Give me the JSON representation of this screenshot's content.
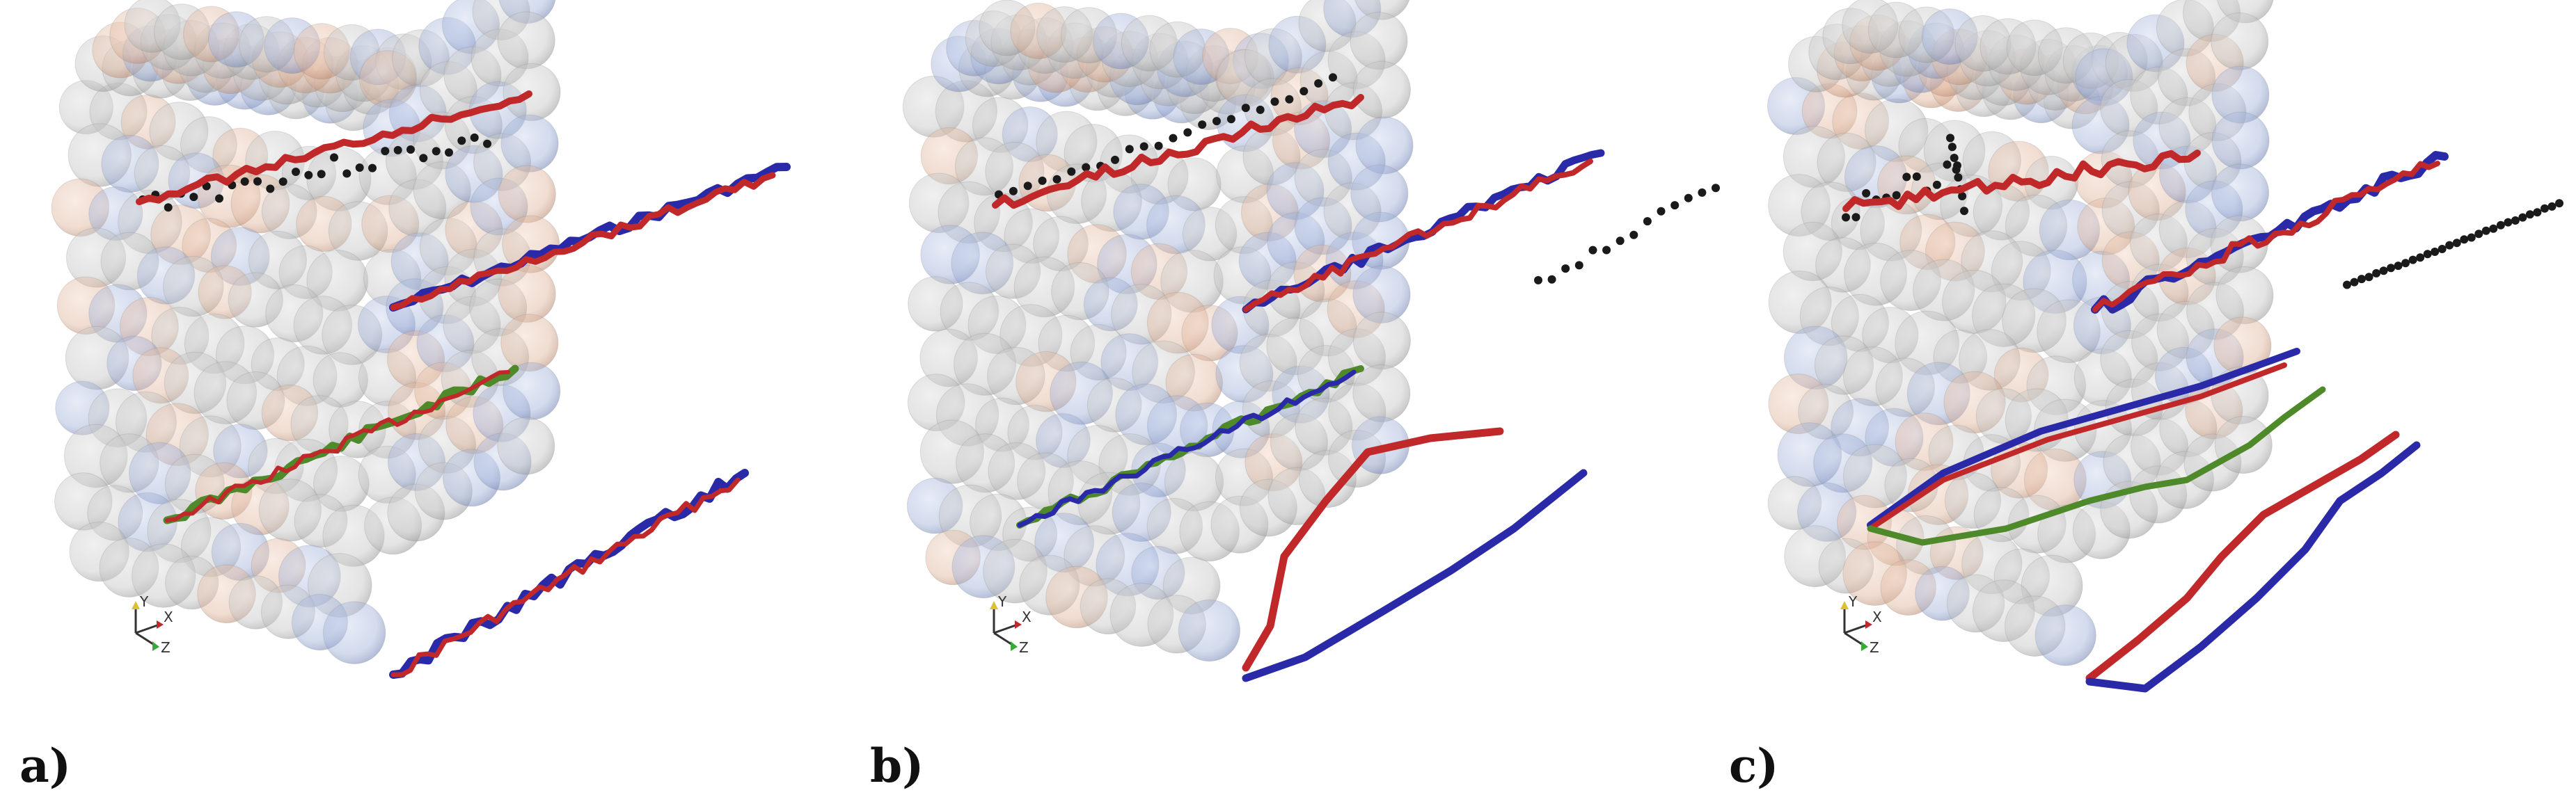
{
  "panels": [
    {
      "label": "a)",
      "axes": {
        "y": "Y",
        "x": "X",
        "z": "Z"
      }
    },
    {
      "label": "b)",
      "axes": {
        "y": "Y",
        "x": "X",
        "z": "Z"
      }
    },
    {
      "label": "c)",
      "axes": {
        "y": "Y",
        "x": "X",
        "z": "Z"
      }
    }
  ],
  "colors": {
    "path_red": "#c0282a",
    "path_blue": "#2a2aa8",
    "path_green": "#4e8a2a",
    "points_black": "#1a1a1a",
    "sphere_grey": "#b9b9b9",
    "sphere_blue": "#7f95c8",
    "sphere_orange": "#d9a888"
  }
}
